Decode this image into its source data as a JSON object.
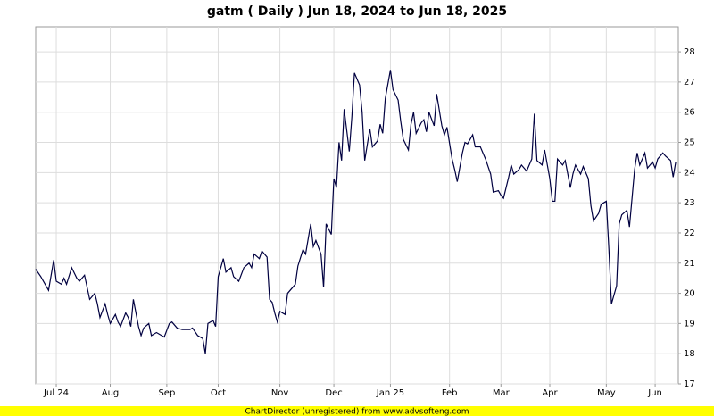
{
  "chart_data": {
    "type": "line",
    "title": "gatm ( Daily ) Jun 18, 2024 to Jun 18, 2025",
    "footer": "ChartDirector (unregistered) from www.advsofteng.com",
    "x": [
      0,
      2,
      3,
      5,
      7,
      8,
      10,
      11,
      12,
      14,
      16,
      17,
      19,
      21,
      23,
      24,
      25,
      27,
      28,
      29,
      31,
      32,
      33,
      35,
      36,
      37,
      38,
      40,
      41,
      42,
      44,
      45,
      47,
      49,
      50,
      52,
      53,
      55,
      57,
      60,
      61,
      63,
      65,
      66,
      67,
      69,
      70,
      71,
      73,
      74,
      76,
      77,
      79,
      81,
      83,
      84,
      85,
      87,
      88,
      90,
      91,
      92,
      93,
      94,
      95,
      97,
      98,
      100,
      101,
      102,
      104,
      105,
      107,
      108,
      109,
      111,
      112,
      113,
      115,
      116,
      117,
      118,
      119,
      120,
      122,
      123,
      124,
      126,
      127,
      128,
      130,
      131,
      133,
      134,
      135,
      136,
      138,
      139,
      141,
      142,
      143,
      145,
      146,
      147,
      148,
      150,
      151,
      152,
      153,
      155,
      156,
      158,
      159,
      160,
      162,
      163,
      164,
      166,
      167,
      168,
      170,
      171,
      173,
      174,
      175,
      177,
      178,
      180,
      181,
      182,
      184,
      185,
      186,
      188,
      189,
      191,
      192,
      193,
      194,
      195,
      197,
      198,
      200,
      201,
      202,
      203,
      205,
      206,
      208,
      209,
      210,
      212,
      213,
      215,
      216,
      217,
      219,
      220,
      222,
      223,
      224,
      226,
      227,
      228,
      230,
      231,
      233,
      234,
      235,
      237,
      238,
      240,
      241,
      242,
      244,
      245,
      247,
      248,
      249
    ],
    "series": [
      {
        "name": "gatm",
        "color": "#000040",
        "values": [
          20.8,
          20.55,
          20.4,
          20.1,
          21.1,
          20.4,
          20.3,
          20.5,
          20.3,
          20.85,
          20.5,
          20.4,
          20.6,
          19.8,
          20.0,
          19.65,
          19.2,
          19.65,
          19.3,
          19.0,
          19.3,
          19.05,
          18.9,
          19.35,
          19.2,
          18.9,
          19.8,
          18.9,
          18.6,
          18.85,
          19.0,
          18.6,
          18.7,
          18.6,
          18.55,
          19.0,
          19.05,
          18.85,
          18.8,
          18.8,
          18.85,
          18.6,
          18.5,
          18.0,
          19.0,
          19.1,
          18.9,
          20.55,
          21.15,
          20.7,
          20.85,
          20.55,
          20.4,
          20.85,
          21.0,
          20.85,
          21.3,
          21.15,
          21.4,
          21.2,
          19.8,
          19.7,
          19.35,
          19.05,
          19.4,
          19.3,
          20.0,
          20.2,
          20.3,
          20.9,
          21.45,
          21.3,
          22.3,
          21.55,
          21.75,
          21.3,
          20.2,
          22.3,
          21.95,
          23.8,
          23.5,
          25.0,
          24.4,
          26.1,
          24.7,
          25.85,
          27.3,
          26.9,
          26.0,
          24.4,
          25.45,
          24.85,
          25.05,
          25.6,
          25.3,
          26.45,
          27.4,
          26.75,
          26.4,
          25.7,
          25.1,
          24.75,
          25.6,
          26.0,
          25.3,
          25.65,
          25.75,
          25.35,
          26.0,
          25.55,
          26.6,
          25.55,
          25.25,
          25.5,
          24.45,
          24.1,
          23.7,
          24.65,
          25.0,
          24.95,
          25.25,
          24.85,
          24.85,
          24.65,
          24.45,
          23.95,
          23.35,
          23.4,
          23.25,
          23.15,
          23.85,
          24.25,
          23.95,
          24.1,
          24.25,
          24.05,
          24.25,
          24.45,
          25.95,
          24.4,
          24.25,
          24.75,
          23.8,
          23.05,
          23.05,
          24.45,
          24.25,
          24.4,
          23.5,
          23.95,
          24.25,
          23.95,
          24.2,
          23.8,
          22.9,
          22.4,
          22.65,
          22.95,
          23.05,
          21.45,
          19.65,
          20.25,
          22.3,
          22.6,
          22.75,
          22.2,
          24.1,
          24.65,
          24.25,
          24.65,
          24.15,
          24.35,
          24.15,
          24.45,
          24.65,
          24.55,
          24.4,
          23.85,
          24.35
        ]
      }
    ],
    "xlim": [
      0,
      250
    ],
    "xticks": [
      {
        "value": 8,
        "label": "Jul 24"
      },
      {
        "value": 29,
        "label": "Aug"
      },
      {
        "value": 51,
        "label": "Sep"
      },
      {
        "value": 71,
        "label": "Oct"
      },
      {
        "value": 95,
        "label": "Nov"
      },
      {
        "value": 116,
        "label": "Dec"
      },
      {
        "value": 138,
        "label": "Jan 25"
      },
      {
        "value": 161,
        "label": "Feb"
      },
      {
        "value": 181,
        "label": "Mar"
      },
      {
        "value": 200,
        "label": "Apr"
      },
      {
        "value": 222,
        "label": "May"
      },
      {
        "value": 241,
        "label": "Jun"
      }
    ],
    "ylim": [
      17,
      28.83
    ],
    "yticks": [
      17,
      18,
      19,
      20,
      21,
      22,
      23,
      24,
      25,
      26,
      27,
      28
    ],
    "grid": true
  }
}
